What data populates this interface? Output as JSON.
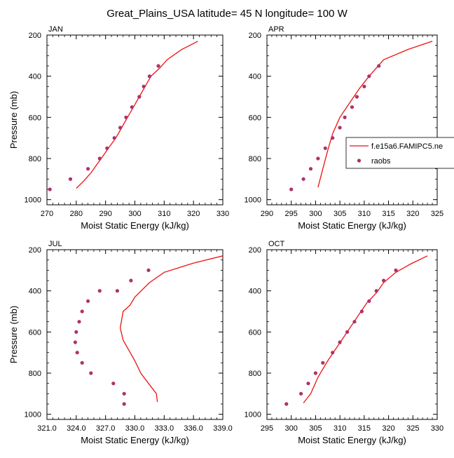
{
  "page_title": "Great_Plains_USA  latitude= 45 N longitude= 100 W",
  "colors": {
    "model": "#ee1111",
    "raobs": "#b0306a",
    "axis": "#000000"
  },
  "legend": {
    "model_label": "f.e15a6.FAMIPC5.ne",
    "raobs_label": "raobs"
  },
  "chart_data": [
    {
      "type": "line",
      "panel": "JAN",
      "xlabel": "Moist Static Energy (kJ/kg)",
      "ylabel": "Pressure (mb)",
      "xlim": [
        270,
        330
      ],
      "ylim": [
        1025,
        200
      ],
      "x_ticks": [
        270,
        280,
        290,
        300,
        310,
        320,
        330
      ],
      "x_tick_labels": [
        "270",
        "280",
        "290",
        "300",
        "310",
        "320",
        "330"
      ],
      "y_ticks": [
        200,
        400,
        600,
        800,
        1000
      ],
      "y_tick_labels": [
        "200",
        "400",
        "600",
        "800",
        "1000"
      ],
      "series": [
        {
          "kind": "line",
          "x": [
            321.5,
            316,
            311,
            308.5,
            305.5,
            303.5,
            301.5,
            299.5,
            297.5,
            295.5,
            293.5,
            291,
            289,
            287,
            285,
            282.5,
            280
          ],
          "y": [
            230,
            270,
            320,
            360,
            400,
            450,
            500,
            550,
            600,
            650,
            700,
            750,
            790,
            830,
            870,
            910,
            945
          ]
        },
        {
          "kind": "scatter",
          "x": [
            271,
            278,
            284,
            288,
            290.5,
            293,
            295,
            297,
            299,
            301.5,
            303,
            305,
            308
          ],
          "y": [
            950,
            900,
            850,
            800,
            750,
            700,
            650,
            600,
            550,
            500,
            450,
            400,
            350
          ]
        }
      ]
    },
    {
      "type": "line",
      "panel": "APR",
      "xlabel": "Moist Static Energy (kJ/kg)",
      "ylabel": "",
      "xlim": [
        290,
        325
      ],
      "ylim": [
        1025,
        200
      ],
      "x_ticks": [
        290,
        295,
        300,
        305,
        310,
        315,
        320,
        325
      ],
      "x_tick_labels": [
        "290",
        "295",
        "300",
        "305",
        "310",
        "315",
        "320",
        "325"
      ],
      "y_ticks": [
        200,
        400,
        600,
        800,
        1000
      ],
      "y_tick_labels": [
        "200",
        "400",
        "600",
        "800",
        "1000"
      ],
      "series": [
        {
          "kind": "line",
          "x": [
            324,
            319,
            314,
            311,
            309,
            307,
            305,
            303.5,
            302.5,
            301.5,
            300.5
          ],
          "y": [
            230,
            270,
            320,
            400,
            460,
            530,
            600,
            680,
            760,
            850,
            940
          ]
        },
        {
          "kind": "scatter",
          "x": [
            295,
            297.5,
            299,
            300.5,
            302,
            303.5,
            305,
            306,
            307.5,
            308.5,
            310,
            311,
            313
          ],
          "y": [
            950,
            900,
            850,
            800,
            750,
            700,
            650,
            600,
            550,
            500,
            450,
            400,
            350
          ]
        }
      ]
    },
    {
      "type": "line",
      "panel": "JUL",
      "xlabel": "Moist Static Energy (kJ/kg)",
      "ylabel": "Pressure (mb)",
      "xlim": [
        321,
        339
      ],
      "ylim": [
        1025,
        200
      ],
      "x_ticks": [
        321,
        324,
        327,
        330,
        333,
        336,
        339
      ],
      "x_tick_labels": [
        "321.0",
        "324.0",
        "327.0",
        "330.0",
        "333.0",
        "336.0",
        "339.0"
      ],
      "y_ticks": [
        200,
        400,
        600,
        800,
        1000
      ],
      "y_tick_labels": [
        "200",
        "400",
        "600",
        "800",
        "1000"
      ],
      "series": [
        {
          "kind": "line",
          "x": [
            339,
            336,
            333,
            331.5,
            330,
            329.5,
            328.8,
            328.5,
            328.8,
            329.4,
            330,
            330.6,
            331.4,
            332.2,
            332.3
          ],
          "y": [
            230,
            265,
            310,
            360,
            430,
            470,
            500,
            580,
            640,
            690,
            740,
            800,
            850,
            900,
            940
          ]
        },
        {
          "kind": "scatter",
          "x": [
            328.9,
            328.9,
            327.8,
            325.5,
            324.6,
            324.1,
            323.9,
            324.0,
            324.3,
            324.6,
            325.2,
            326.4,
            328.2,
            329.6,
            331.4
          ],
          "y": [
            950,
            900,
            850,
            800,
            750,
            700,
            650,
            600,
            550,
            500,
            450,
            400,
            400,
            350,
            300
          ]
        }
      ]
    },
    {
      "type": "line",
      "panel": "OCT",
      "xlabel": "Moist Static Energy (kJ/kg)",
      "ylabel": "",
      "xlim": [
        295,
        330
      ],
      "ylim": [
        1025,
        200
      ],
      "x_ticks": [
        295,
        300,
        305,
        310,
        315,
        320,
        325,
        330
      ],
      "x_tick_labels": [
        "295",
        "300",
        "305",
        "310",
        "315",
        "320",
        "325",
        "330"
      ],
      "y_ticks": [
        200,
        400,
        600,
        800,
        1000
      ],
      "y_tick_labels": [
        "200",
        "400",
        "600",
        "800",
        "1000"
      ],
      "series": [
        {
          "kind": "line",
          "x": [
            328,
            324.5,
            321.5,
            319,
            317.5,
            315.5,
            313.5,
            311.5,
            309.5,
            307.5,
            305.5,
            304,
            302.5
          ],
          "y": [
            230,
            270,
            310,
            360,
            410,
            460,
            530,
            600,
            670,
            740,
            820,
            900,
            945
          ]
        },
        {
          "kind": "scatter",
          "x": [
            299,
            302,
            303.5,
            305,
            306.5,
            308.5,
            310,
            311.5,
            313,
            314.5,
            316,
            317.5,
            319,
            321.5
          ],
          "y": [
            950,
            900,
            850,
            800,
            750,
            700,
            650,
            600,
            550,
            500,
            450,
            400,
            350,
            300
          ]
        }
      ]
    }
  ]
}
